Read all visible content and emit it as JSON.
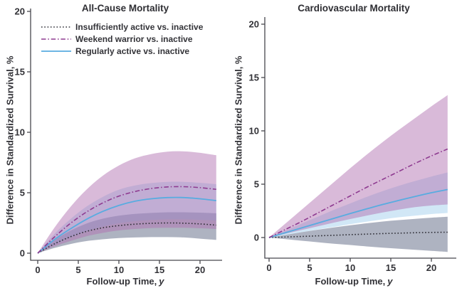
{
  "figure": {
    "ylabel": "Difference in Standardized Survival, %",
    "xlabel_main": "Follow-up Time,",
    "xlabel_italic": "y"
  },
  "legend": {
    "items": [
      {
        "label": "Insufficiently active vs. inactive",
        "series": "insufficiently-active-vs-inactive"
      },
      {
        "label": "Weekend warrior vs. inactive",
        "series": "weekend-warrior-vs-inactive"
      },
      {
        "label": "Regularly active vs. inactive",
        "series": "regularly-active-vs-inactive"
      }
    ]
  },
  "colors": {
    "axis": "#47474d",
    "text": "#323237",
    "insufficient_line": "#2e2e36",
    "weekend_line": "#8e3a90",
    "regular_line": "#58ace0",
    "insufficient_band": "#6f7890",
    "weekend_band": "#b06eb0",
    "regular_band": "#78bae6"
  },
  "chart_data": [
    {
      "type": "line",
      "title": "All-Cause Mortality",
      "xlabel": "Follow-up Time, y",
      "ylabel": "Difference in Standardized Survival, %",
      "x": [
        0,
        2,
        4,
        6,
        8,
        10,
        12,
        14,
        16,
        18,
        20,
        22
      ],
      "xticks": [
        0,
        5,
        10,
        15,
        20
      ],
      "yticks": [
        0,
        5,
        10,
        15,
        20
      ],
      "xlim": [
        0,
        22
      ],
      "ylim": [
        -1,
        21
      ],
      "grid": false,
      "legend_position": "top-left-inside",
      "series": [
        {
          "name": "insufficiently-active-vs-inactive",
          "line": "dotted",
          "mean": [
            0,
            0.75,
            1.35,
            1.8,
            2.1,
            2.28,
            2.4,
            2.47,
            2.5,
            2.48,
            2.42,
            2.32
          ],
          "ci_upper": [
            0,
            1.05,
            1.85,
            2.45,
            2.85,
            3.1,
            3.25,
            3.33,
            3.38,
            3.38,
            3.35,
            3.3
          ],
          "ci_lower": [
            0,
            0.42,
            0.75,
            1.0,
            1.15,
            1.25,
            1.3,
            1.33,
            1.33,
            1.3,
            1.2,
            1.1
          ]
        },
        {
          "name": "regularly-active-vs-inactive",
          "line": "solid",
          "mean": [
            0,
            1.1,
            2.0,
            2.8,
            3.45,
            3.95,
            4.3,
            4.5,
            4.6,
            4.6,
            4.5,
            4.35
          ],
          "ci_upper": [
            0,
            1.55,
            2.8,
            3.85,
            4.65,
            5.25,
            5.6,
            5.8,
            5.9,
            5.9,
            5.82,
            5.7
          ],
          "ci_lower": [
            0,
            0.68,
            1.28,
            1.8,
            2.2,
            2.48,
            2.65,
            2.75,
            2.8,
            2.8,
            2.76,
            2.7
          ]
        },
        {
          "name": "weekend-warrior-vs-inactive",
          "line": "dash-dot",
          "mean": [
            0,
            1.3,
            2.45,
            3.4,
            4.15,
            4.72,
            5.1,
            5.35,
            5.48,
            5.5,
            5.42,
            5.28
          ],
          "ci_upper": [
            0,
            2.05,
            3.8,
            5.25,
            6.4,
            7.25,
            7.85,
            8.2,
            8.4,
            8.42,
            8.3,
            8.1
          ],
          "ci_lower": [
            0,
            0.55,
            1.0,
            1.4,
            1.68,
            1.88,
            2.0,
            2.08,
            2.1,
            2.1,
            2.06,
            2.0
          ]
        }
      ]
    },
    {
      "type": "line",
      "title": "Cardiovascular Mortality",
      "xlabel": "Follow-up Time, y",
      "ylabel": "Difference in Standardized Survival, %",
      "x": [
        0,
        2,
        4,
        6,
        8,
        10,
        12,
        14,
        16,
        18,
        20,
        22
      ],
      "xticks": [
        0,
        5,
        10,
        15,
        20
      ],
      "yticks": [
        0,
        5,
        10,
        15,
        20
      ],
      "xlim": [
        0,
        22
      ],
      "ylim": [
        -2,
        21
      ],
      "grid": false,
      "legend_position": "none",
      "series": [
        {
          "name": "insufficiently-active-vs-inactive",
          "line": "dotted",
          "mean": [
            0,
            0.05,
            0.1,
            0.16,
            0.21,
            0.27,
            0.32,
            0.37,
            0.41,
            0.45,
            0.48,
            0.5
          ],
          "ci_upper": [
            0,
            0.25,
            0.5,
            0.73,
            0.95,
            1.15,
            1.33,
            1.5,
            1.63,
            1.75,
            1.86,
            1.95
          ],
          "ci_lower": [
            0,
            -0.15,
            -0.3,
            -0.44,
            -0.58,
            -0.7,
            -0.83,
            -0.95,
            -1.05,
            -1.15,
            -1.25,
            -1.35
          ]
        },
        {
          "name": "regularly-active-vs-inactive",
          "line": "solid",
          "mean": [
            0,
            0.45,
            0.9,
            1.35,
            1.8,
            2.25,
            2.68,
            3.1,
            3.48,
            3.85,
            4.2,
            4.5
          ],
          "ci_upper": [
            0,
            0.65,
            1.3,
            1.95,
            2.6,
            3.2,
            3.8,
            4.35,
            4.85,
            5.3,
            5.72,
            6.1
          ],
          "ci_lower": [
            0,
            0.25,
            0.5,
            0.76,
            1.0,
            1.25,
            1.48,
            1.7,
            1.9,
            2.05,
            2.2,
            2.3
          ]
        },
        {
          "name": "weekend-warrior-vs-inactive",
          "line": "dash-dot",
          "mean": [
            0,
            0.75,
            1.5,
            2.3,
            3.1,
            3.9,
            4.7,
            5.45,
            6.2,
            6.95,
            7.65,
            8.3
          ],
          "ci_upper": [
            0,
            1.3,
            2.6,
            3.9,
            5.2,
            6.5,
            7.75,
            8.95,
            10.1,
            11.2,
            12.3,
            13.35
          ],
          "ci_lower": [
            0,
            0.35,
            0.7,
            1.05,
            1.4,
            1.73,
            2.05,
            2.35,
            2.62,
            2.85,
            3.0,
            3.1
          ]
        }
      ]
    }
  ]
}
